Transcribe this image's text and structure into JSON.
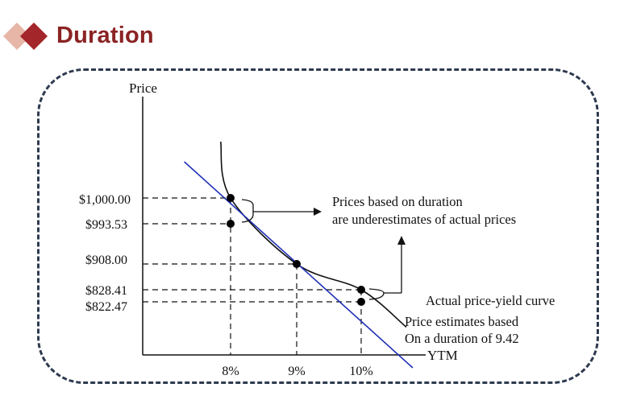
{
  "title": "Duration",
  "colors": {
    "title": "#8B2323",
    "icon_dark": "#A3262A",
    "icon_light": "#E7B6A7",
    "frame_border": "#2E3A4F",
    "duration_line": "#1F2FB5",
    "curve": "#111111"
  },
  "icons": {
    "header": "double-diamond-icon"
  },
  "chart_data": {
    "type": "line",
    "ylabel": "Price",
    "xlabel": "YTM",
    "x_ticks": [
      "8%",
      "9%",
      "10%"
    ],
    "y_ticks": [
      "$1,000.00",
      "$993.53",
      "$908.00",
      "$828.41",
      "$822.47"
    ],
    "series": [
      {
        "id": "actual",
        "style": "curve",
        "points": [
          [
            7.85,
            1070
          ],
          [
            8.0,
            1000.0
          ],
          [
            9.0,
            908.0
          ],
          [
            10.0,
            828.41
          ],
          [
            10.7,
            810
          ]
        ]
      },
      {
        "id": "estimate",
        "style": "line",
        "points": [
          [
            7.3,
            1045
          ],
          [
            8.0,
            993.53
          ],
          [
            9.0,
            908.0
          ],
          [
            10.0,
            822.47
          ],
          [
            10.8,
            790
          ]
        ]
      }
    ],
    "marked_points": [
      [
        8.0,
        1000.0
      ],
      [
        8.0,
        993.53
      ],
      [
        9.0,
        908.0
      ],
      [
        10.0,
        828.41
      ],
      [
        10.0,
        822.47
      ]
    ],
    "annotations": {
      "underestimate_line1": "Prices based on duration",
      "underestimate_line2": "are underestimates of actual prices",
      "actual_curve": "Actual price-yield curve",
      "estimate_line1": "Price estimates based",
      "estimate_line2": "On a duration of 9.42"
    }
  }
}
